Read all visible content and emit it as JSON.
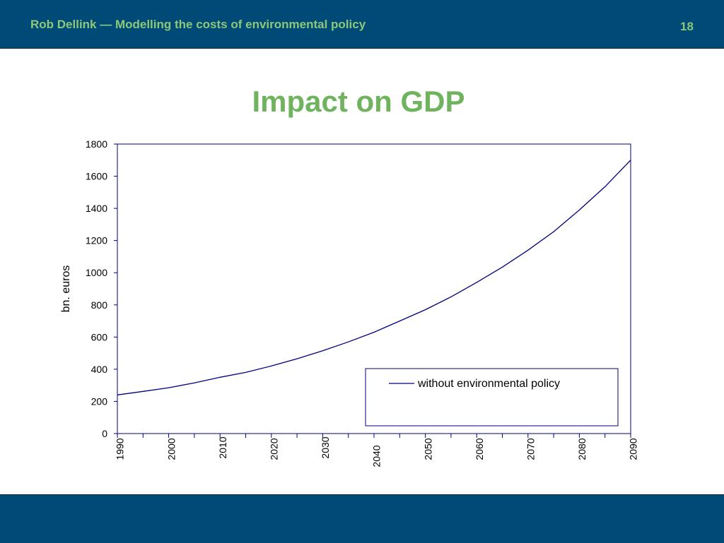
{
  "header": {
    "title": "Rob Dellink — Modelling the costs of environmental policy",
    "page_number": "18"
  },
  "slide": {
    "title": "Impact on GDP"
  },
  "colors": {
    "header_bg": "#004a78",
    "accent_green": "#8cc77a",
    "title_green": "#6fb35f",
    "line": "#000080"
  },
  "chart_data": {
    "type": "line",
    "title": "",
    "ylabel": "bn. euros",
    "xlabel": "",
    "ylim": [
      0,
      1800
    ],
    "xlim": [
      1990,
      2090
    ],
    "y_ticks": [
      0,
      200,
      400,
      600,
      800,
      1000,
      1200,
      1400,
      1600,
      1800
    ],
    "x_ticks": [
      1990,
      2000,
      2010,
      2020,
      2030,
      2040,
      2050,
      2060,
      2070,
      2080,
      2090
    ],
    "grid": false,
    "legend_position": "lower-right",
    "series": [
      {
        "name": "without environmental policy",
        "x": [
          1990,
          1995,
          2000,
          2005,
          2010,
          2015,
          2020,
          2025,
          2030,
          2035,
          2040,
          2045,
          2050,
          2055,
          2060,
          2065,
          2070,
          2075,
          2080,
          2085,
          2090
        ],
        "y": [
          240,
          262,
          285,
          315,
          350,
          380,
          420,
          465,
          515,
          570,
          630,
          700,
          770,
          850,
          940,
          1035,
          1140,
          1255,
          1390,
          1535,
          1700
        ]
      }
    ]
  }
}
